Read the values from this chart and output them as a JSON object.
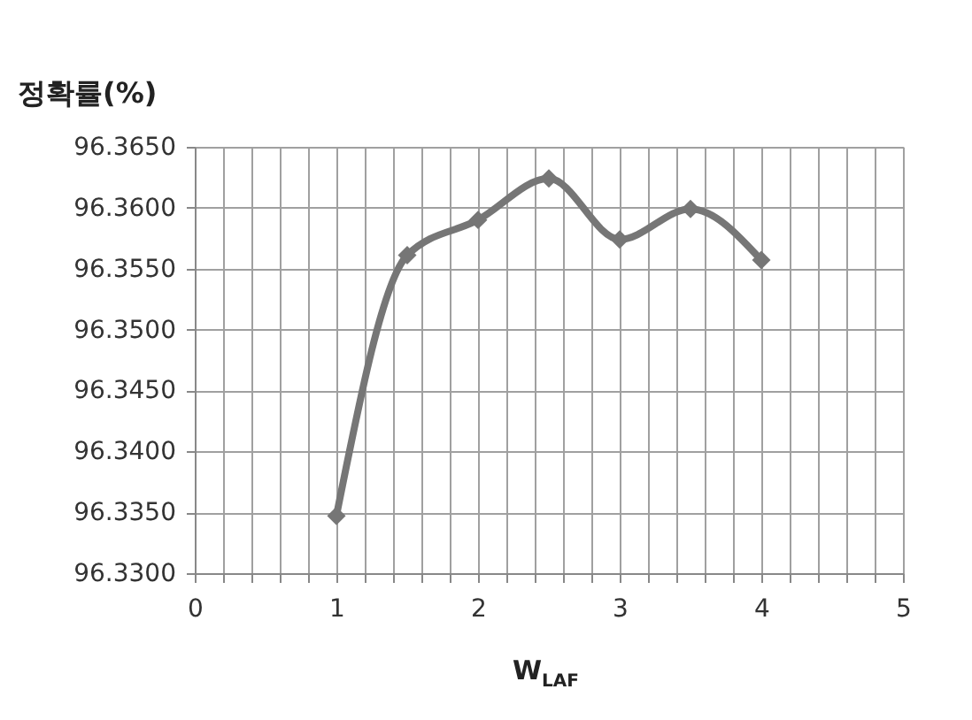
{
  "chart_data": {
    "type": "line",
    "title": "정확률(%)",
    "xlabel": "W$_{LAF}$",
    "x": [
      1,
      1.5,
      2,
      2.5,
      3,
      3.5,
      4
    ],
    "series": [
      {
        "color": "#767676",
        "values": [
          96.3347,
          96.3561,
          96.359,
          96.3624,
          96.3574,
          96.3599,
          96.3557
        ]
      }
    ],
    "xlim": [
      0,
      5
    ],
    "xticks": [
      0,
      {
        "value": 0.2,
        "label": null
      },
      {
        "value": 0.4,
        "label": null
      },
      {
        "value": 0.6,
        "label": null
      },
      {
        "value": 0.8,
        "label": null
      },
      1,
      {
        "value": 1.2,
        "label": null
      },
      {
        "value": 1.4,
        "label": null
      },
      {
        "value": 1.6,
        "label": null
      },
      {
        "value": 1.8,
        "label": null
      },
      2,
      {
        "value": 2.2,
        "label": null
      },
      {
        "value": 2.4,
        "label": null
      },
      {
        "value": 2.6,
        "label": null
      },
      {
        "value": 2.8,
        "label": null
      },
      3,
      {
        "value": 3.2,
        "label": null
      },
      {
        "value": 3.4,
        "label": null
      },
      {
        "value": 3.6,
        "label": null
      },
      {
        "value": 3.8,
        "label": null
      },
      4,
      {
        "value": 4.2,
        "label": null
      },
      {
        "value": 4.4,
        "label": null
      },
      {
        "value": 4.6,
        "label": null
      },
      {
        "value": 4.8,
        "label": null
      },
      5
    ],
    "ylim": [
      96.33,
      96.365
    ],
    "yticks": [
      {
        "value": 96.33,
        "label": "96.3300"
      },
      {
        "value": 96.335,
        "label": "96.3350"
      },
      {
        "value": 96.34,
        "label": "96.3400"
      },
      {
        "value": 96.345,
        "label": "96.3450"
      },
      {
        "value": 96.35,
        "label": "96.3500"
      },
      {
        "value": 96.355,
        "label": "96.3550"
      },
      {
        "value": 96.36,
        "label": "96.3600"
      },
      {
        "value": 96.365,
        "label": "96.3650"
      }
    ],
    "grid": true,
    "marker": "diamond",
    "line_style": "solid",
    "legend": false
  }
}
